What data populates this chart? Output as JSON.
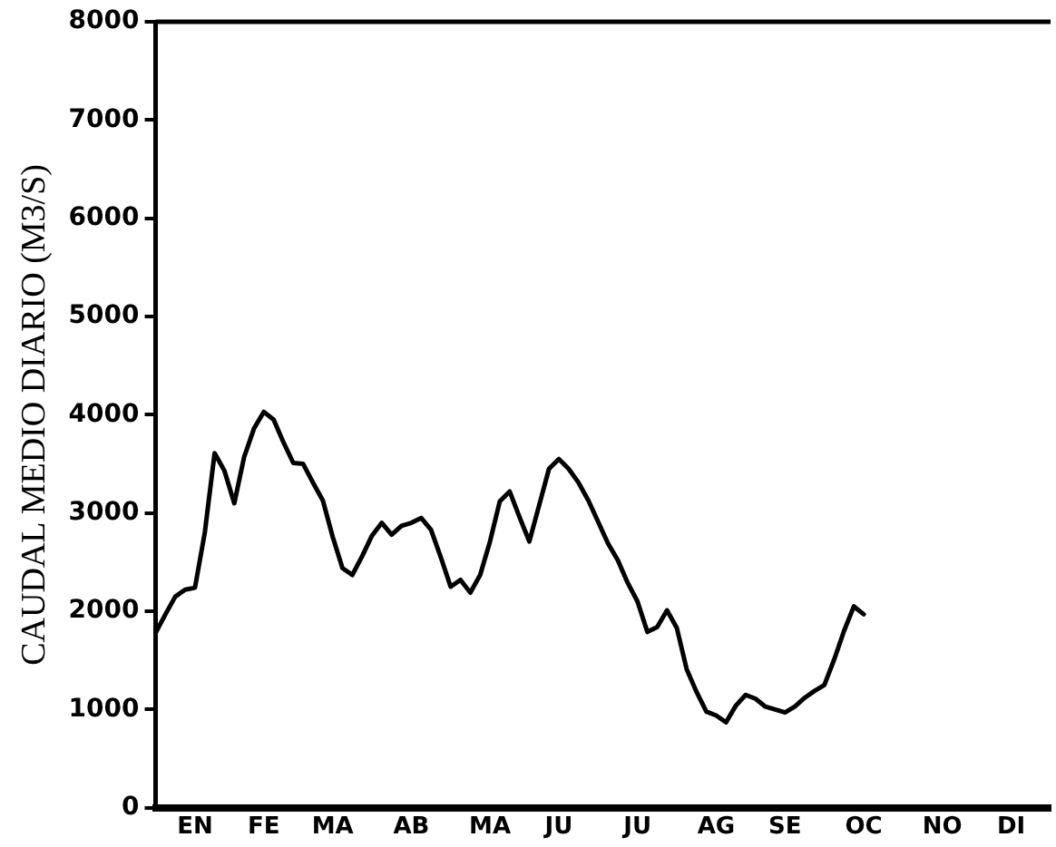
{
  "chart_data": {
    "type": "line",
    "ylabel": "CAUDAL MEDIO DIARIO (M3/S)",
    "categories": [
      null,
      null,
      null,
      null,
      "EN",
      null,
      null,
      null,
      null,
      null,
      null,
      "FE",
      null,
      null,
      null,
      null,
      null,
      null,
      "MA",
      null,
      null,
      null,
      null,
      null,
      null,
      null,
      "AB",
      null,
      null,
      null,
      null,
      null,
      null,
      null,
      "MA",
      null,
      null,
      null,
      null,
      null,
      null,
      "JU",
      null,
      null,
      null,
      null,
      null,
      null,
      null,
      "JU",
      null,
      null,
      null,
      null,
      null,
      null,
      null,
      "AG",
      null,
      null,
      null,
      null,
      null,
      null,
      "SE",
      null,
      null,
      null,
      null,
      null,
      null,
      null,
      "OC",
      null,
      null,
      null,
      null,
      null,
      null,
      null,
      "NO",
      null,
      null,
      null,
      null,
      null,
      null,
      "DI",
      null,
      null,
      null,
      null
    ],
    "series": [
      {
        "color": "#000000",
        "values": [
          1780,
          1970,
          2150,
          2220,
          2240,
          2800,
          3610,
          3430,
          3100,
          3570,
          3860,
          4030,
          3950,
          3720,
          3510,
          3500,
          3310,
          3130,
          2760,
          2440,
          2370,
          2560,
          2770,
          2900,
          2780,
          2870,
          2900,
          2950,
          2830,
          2550,
          2250,
          2320,
          2190,
          2370,
          2710,
          3120,
          3220,
          2960,
          2710,
          3080,
          3450,
          3550,
          3450,
          3310,
          3130,
          2910,
          2690,
          2520,
          2290,
          2100,
          1790,
          1840,
          2010,
          1830,
          1410,
          1180,
          980,
          940,
          870,
          1040,
          1150,
          1110,
          1030,
          1000,
          970,
          1030,
          1120,
          1190,
          1250,
          1510,
          1800,
          2050,
          1970,
          null,
          null,
          null,
          null,
          null,
          null,
          null,
          null,
          null,
          null,
          null,
          null,
          null,
          null,
          null,
          null,
          null,
          null,
          null
        ]
      }
    ],
    "ylim": [
      0,
      8000
    ],
    "yticks": [
      0,
      1000,
      2000,
      3000,
      4000,
      5000,
      6000,
      7000,
      8000
    ],
    "marker": "none",
    "line_style": "solid"
  }
}
